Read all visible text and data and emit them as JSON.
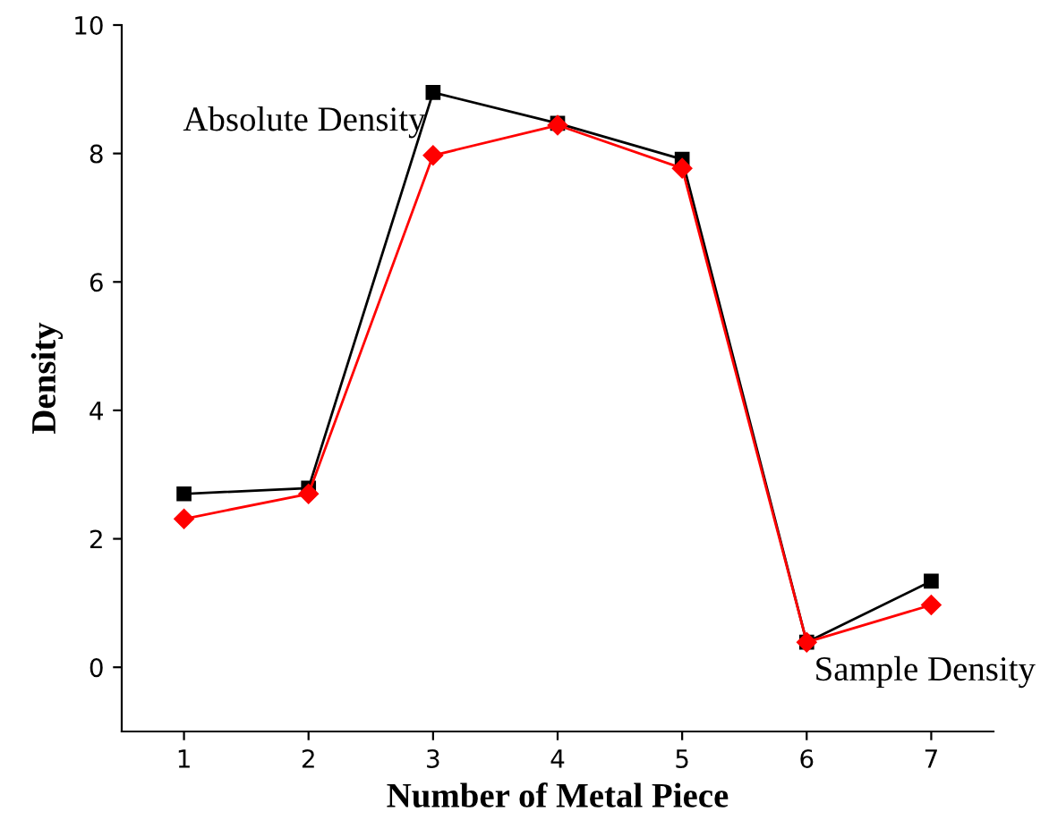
{
  "chart_data": {
    "type": "line",
    "xlabel": "Number of Metal Piece",
    "ylabel": "Density",
    "x": [
      1,
      2,
      3,
      4,
      5,
      6,
      7
    ],
    "series": [
      {
        "name": "Absolute Density",
        "color": "#000000",
        "marker": "square",
        "values": [
          2.7,
          2.79,
          8.95,
          8.47,
          7.91,
          0.39,
          1.34
        ]
      },
      {
        "name": "Sample Density",
        "color": "#ff0000",
        "marker": "diamond",
        "values": [
          2.31,
          2.7,
          7.97,
          8.44,
          7.77,
          0.39,
          0.97
        ]
      }
    ],
    "xlim": [
      0.5,
      7.5
    ],
    "ylim": [
      -1,
      10
    ],
    "xticks": [
      1,
      2,
      3,
      4,
      5,
      6,
      7
    ],
    "yticks": [
      0,
      2,
      4,
      6,
      8,
      10
    ],
    "grid": false,
    "legend": false
  }
}
